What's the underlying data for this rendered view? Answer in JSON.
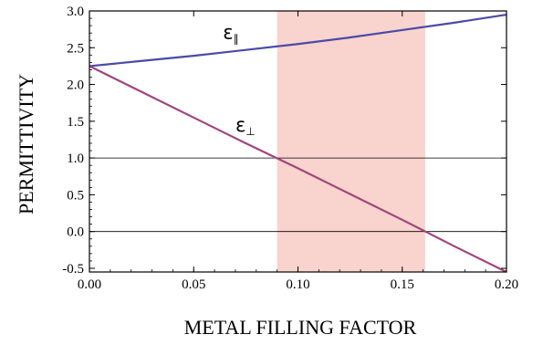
{
  "chart_data": {
    "type": "line",
    "xlabel": "METAL FILLING FACTOR",
    "ylabel": "PERMITTIVITY",
    "xlim": [
      0.0,
      0.2
    ],
    "ylim": [
      -0.55,
      3.0
    ],
    "x_ticks": [
      "0.00",
      "0.05",
      "0.10",
      "0.15",
      "0.20"
    ],
    "y_ticks": [
      "-0.5",
      "0.0",
      "0.5",
      "1.0",
      "1.5",
      "2.0",
      "2.5",
      "3.0"
    ],
    "reference_lines_y": [
      1.0,
      0.0
    ],
    "shaded_region_x": [
      0.09,
      0.161
    ],
    "grid": false,
    "series": [
      {
        "name": "ε∥",
        "symbol": "ε",
        "subscript": "∥",
        "color": "#4a4aa8",
        "x": [
          0.0,
          0.025,
          0.05,
          0.075,
          0.1,
          0.125,
          0.15,
          0.175,
          0.2
        ],
        "y": [
          2.25,
          2.32,
          2.39,
          2.47,
          2.55,
          2.64,
          2.74,
          2.84,
          2.95
        ]
      },
      {
        "name": "ε⊥",
        "symbol": "ε",
        "subscript": "⊥",
        "color": "#a0457e",
        "x": [
          0.0,
          0.025,
          0.05,
          0.075,
          0.1,
          0.125,
          0.15,
          0.175,
          0.2
        ],
        "y": [
          2.25,
          1.9,
          1.55,
          1.2,
          0.86,
          0.51,
          0.16,
          -0.2,
          -0.55
        ]
      }
    ],
    "shade_color": "#f9d3cd"
  }
}
